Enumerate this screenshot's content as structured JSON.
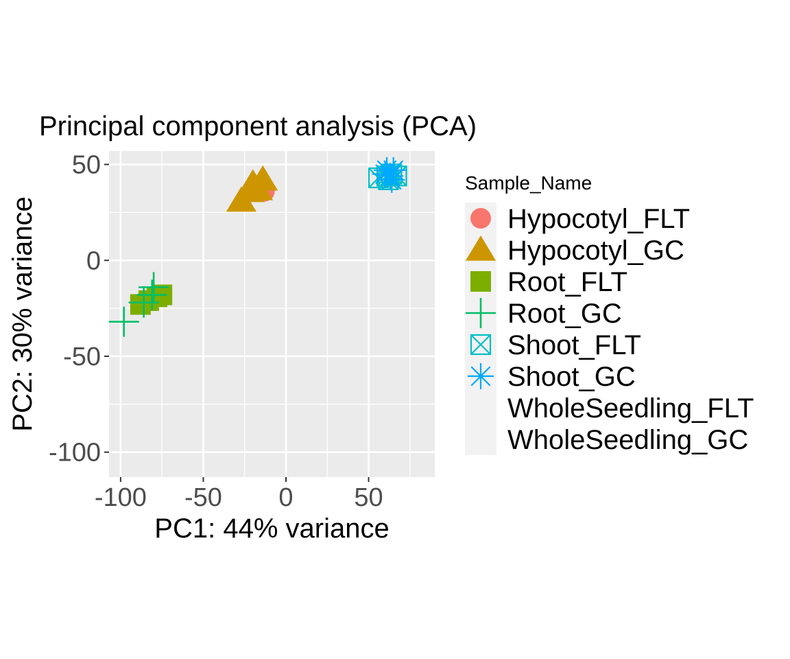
{
  "chart_data": {
    "type": "scatter",
    "title": "Principal component analysis (PCA)",
    "xlabel": "PC1: 44% variance",
    "ylabel": "PC2: 30% variance",
    "xlim": [
      -107,
      90
    ],
    "ylim": [
      -113,
      57
    ],
    "x_ticks": [
      -100,
      -50,
      0,
      50
    ],
    "x_tick_labels": [
      "-100",
      "-50",
      "0",
      "50"
    ],
    "y_ticks": [
      -100,
      -50,
      0,
      50
    ],
    "y_tick_labels": [
      "-100",
      "-50",
      "0",
      "50"
    ],
    "grid": true,
    "legend_position": "right",
    "legend_title": "Sample_Name",
    "series": [
      {
        "name": "Hypocotyl_FLT",
        "color": "#F8766D",
        "shape": "circle",
        "points": [
          [
            -13,
            36
          ]
        ]
      },
      {
        "name": "Hypocotyl_GC",
        "color": "#CD9600",
        "shape": "triangle",
        "points": [
          [
            -27,
            31
          ],
          [
            -22,
            36
          ],
          [
            -17,
            37
          ],
          [
            -14,
            42
          ],
          [
            -20,
            40
          ]
        ]
      },
      {
        "name": "Root_FLT",
        "color": "#7CAE00",
        "shape": "square",
        "points": [
          [
            -88,
            -23
          ],
          [
            -83,
            -21
          ],
          [
            -78,
            -19
          ],
          [
            -75,
            -18
          ]
        ]
      },
      {
        "name": "Root_GC",
        "color": "#00BE67",
        "shape": "plus",
        "points": [
          [
            -98,
            -32
          ],
          [
            -86,
            -22
          ],
          [
            -81,
            -18
          ],
          [
            -80,
            -14
          ]
        ]
      },
      {
        "name": "Shoot_FLT",
        "color": "#00BFC4",
        "shape": "square-cross",
        "points": [
          [
            56,
            43
          ],
          [
            61,
            44
          ],
          [
            64,
            45
          ],
          [
            67,
            44
          ],
          [
            62,
            42
          ]
        ]
      },
      {
        "name": "Shoot_GC",
        "color": "#00A9FF",
        "shape": "star",
        "points": [
          [
            61,
            47
          ],
          [
            63,
            44
          ],
          [
            65,
            47
          ],
          [
            64,
            42
          ],
          [
            60,
            45
          ]
        ]
      },
      {
        "name": "WholeSeedling_FLT",
        "color": "#C77CFF",
        "shape": "none",
        "points": []
      },
      {
        "name": "WholeSeedling_GC",
        "color": "#FF61CC",
        "shape": "none",
        "points": []
      }
    ]
  }
}
